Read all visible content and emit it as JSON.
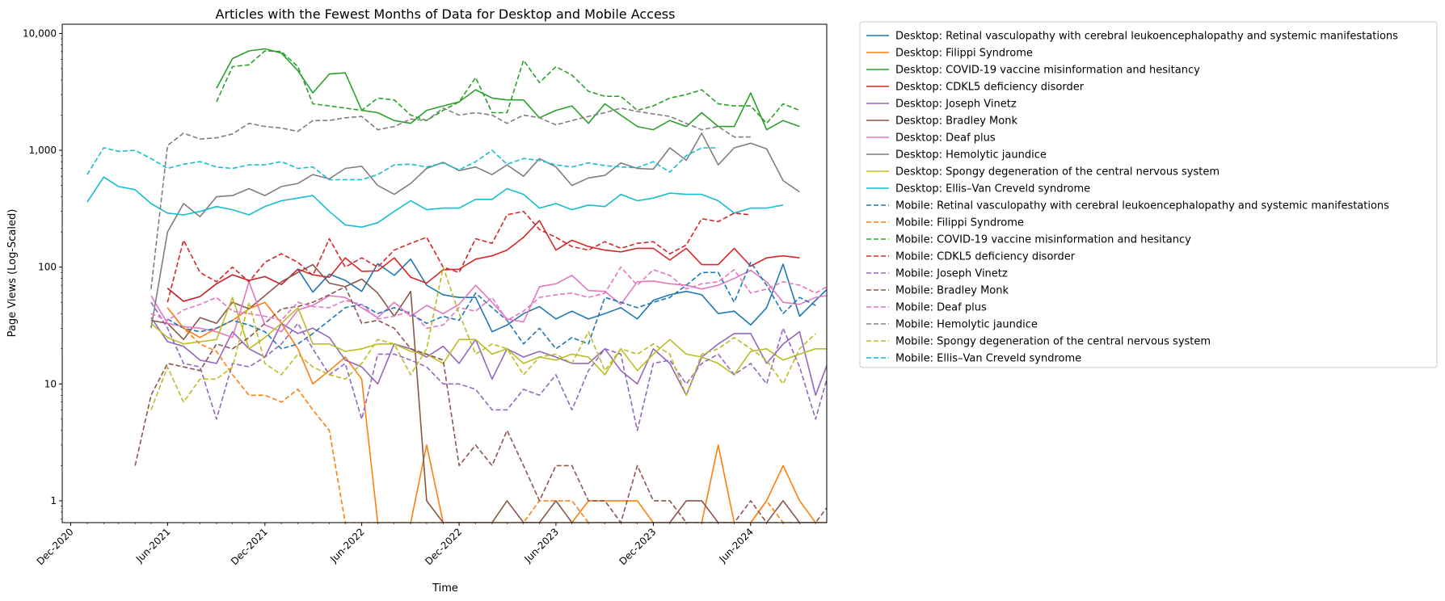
{
  "chart_data": {
    "type": "line",
    "title": "Articles with the Fewest Months of Data for Desktop and Mobile Access",
    "xlabel": "Time",
    "ylabel": "Page Views (Log-Scaled)",
    "y_scale": "log",
    "ylim": [
      0.65,
      12000
    ],
    "xlim": [
      "2020-11-15",
      "2024-10-22"
    ],
    "x_ticks": [
      {
        "date": "2020-12-01",
        "label": "Dec-2020"
      },
      {
        "date": "2021-06-01",
        "label": "Jun-2021"
      },
      {
        "date": "2021-12-01",
        "label": "Dec-2021"
      },
      {
        "date": "2022-06-01",
        "label": "Jun-2022"
      },
      {
        "date": "2022-12-01",
        "label": "Dec-2022"
      },
      {
        "date": "2023-06-01",
        "label": "Jun-2023"
      },
      {
        "date": "2023-12-01",
        "label": "Dec-2023"
      },
      {
        "date": "2024-06-01",
        "label": "Jun-2024"
      }
    ],
    "y_ticks": [
      {
        "value": 1,
        "label": "1"
      },
      {
        "value": 10,
        "label": "10"
      },
      {
        "value": 100,
        "label": "100"
      },
      {
        "value": 1000,
        "label": "1,000"
      },
      {
        "value": 10000,
        "label": "10,000"
      }
    ],
    "grid": false,
    "legend_position": "outside-right-top",
    "series": [
      {
        "name": "Desktop: Retinal vasculopathy with cerebral leukoencephalopathy and systemic manifestations",
        "color": "#1f77b4",
        "dash": "solid",
        "start": "2021-06-01",
        "values": [
          66,
          51,
          56,
          72,
          86,
          77,
          83,
          71,
          96,
          61,
          87,
          77,
          62,
          107,
          85,
          117,
          70,
          58,
          55,
          55,
          28,
          32,
          40,
          46,
          36,
          42,
          36,
          40,
          45,
          36,
          52,
          58,
          62,
          58,
          40,
          42,
          32,
          45,
          106,
          38,
          52,
          71,
          58,
          46
        ]
      },
      {
        "name": "Desktop: Filippi Syndrome",
        "color": "#ff7f0e",
        "dash": "solid",
        "start": "2021-06-01",
        "values": [
          45,
          30,
          25,
          30,
          35,
          44,
          50,
          33,
          20,
          10,
          13,
          17,
          11,
          0,
          0,
          0,
          3,
          0,
          0,
          0,
          0,
          0,
          0,
          0,
          0,
          0,
          1,
          1,
          1,
          1,
          0,
          0,
          0,
          0,
          3,
          0,
          0,
          1,
          2,
          1,
          0,
          0,
          0,
          0,
          1,
          0,
          0,
          0,
          6,
          2,
          1,
          0,
          0,
          1,
          1,
          1
        ]
      },
      {
        "name": "Desktop: COVID-19 vaccine misinformation and hesitancy",
        "color": "#2ca02c",
        "dash": "solid",
        "start": "2021-09-01",
        "values": [
          3400,
          6100,
          7100,
          7400,
          6800,
          4800,
          3100,
          4500,
          4600,
          2200,
          2100,
          1800,
          1700,
          2200,
          2400,
          2600,
          3300,
          2800,
          2700,
          2700,
          1900,
          2200,
          2400,
          1700,
          2500,
          2000,
          1600,
          1500,
          1800,
          1600,
          2100,
          1600,
          1600,
          3100,
          1500,
          1800,
          1600
        ]
      },
      {
        "name": "Desktop: CDKL5 deficiency disorder",
        "color": "#d62728",
        "dash": "solid",
        "start": "2021-06-01",
        "values": [
          66,
          51,
          56,
          72,
          86,
          77,
          83,
          71,
          96,
          86,
          82,
          120,
          92,
          93,
          120,
          82,
          73,
          95,
          96,
          117,
          125,
          140,
          180,
          250,
          140,
          170,
          150,
          140,
          135,
          145,
          145,
          115,
          145,
          105,
          105,
          145,
          102,
          120,
          125,
          120
        ]
      },
      {
        "name": "Desktop: Joseph Vinetz",
        "color": "#9467bd",
        "dash": "solid",
        "start": "2021-05-01",
        "values": [
          37,
          23,
          21,
          16,
          15,
          28,
          20,
          17,
          33,
          27,
          30,
          25,
          16,
          14,
          10,
          22,
          20,
          17,
          21,
          15,
          24,
          11,
          20,
          17,
          19,
          17,
          15,
          15,
          20,
          13,
          10,
          20,
          15,
          8,
          17,
          22,
          27,
          27,
          15,
          22,
          28,
          8,
          19,
          19,
          19
        ]
      },
      {
        "name": "Desktop: Bradley Monk",
        "color": "#8c564b",
        "dash": "solid",
        "start": "2021-05-01",
        "values": [
          35,
          33,
          24,
          37,
          33,
          50,
          44,
          57,
          75,
          90,
          105,
          73,
          68,
          79,
          60,
          38,
          62,
          1,
          0,
          0,
          0,
          0,
          1,
          0,
          0,
          1,
          0,
          0,
          0,
          0,
          0,
          0,
          0,
          1,
          1,
          0,
          0,
          0,
          0,
          1,
          0,
          0,
          0,
          0,
          2,
          0,
          0,
          2,
          1,
          0,
          0
        ]
      },
      {
        "name": "Desktop: Deaf plus",
        "color": "#e377c2",
        "dash": "solid",
        "start": "2021-05-01",
        "values": [
          57,
          33,
          31,
          30,
          28,
          25,
          75,
          32,
          28,
          43,
          47,
          57,
          55,
          45,
          37,
          50,
          38,
          47,
          40,
          48,
          70,
          50,
          36,
          34,
          68,
          72,
          85,
          63,
          62,
          48,
          75,
          76,
          72,
          70,
          65,
          70,
          80,
          94,
          75,
          50,
          48,
          55,
          58,
          65
        ]
      },
      {
        "name": "Desktop: Hemolytic jaundice",
        "color": "#7f7f7f",
        "dash": "solid",
        "start": "2021-05-01",
        "values": [
          30,
          200,
          350,
          270,
          400,
          410,
          470,
          410,
          490,
          520,
          620,
          570,
          700,
          730,
          500,
          420,
          520,
          700,
          790,
          670,
          720,
          620,
          750,
          600,
          850,
          720,
          500,
          580,
          610,
          780,
          700,
          690,
          1050,
          820,
          1400,
          750,
          1050,
          1150,
          1030,
          550,
          440
        ]
      },
      {
        "name": "Desktop: Spongy degeneration of the central nervous system",
        "color": "#bcbd22",
        "dash": "solid",
        "start": "2021-05-01",
        "values": [
          33,
          25,
          22,
          23,
          24,
          55,
          20,
          25,
          33,
          45,
          22,
          22,
          19,
          20,
          22,
          22,
          19,
          18,
          15,
          24,
          24,
          18,
          20,
          15,
          17,
          16,
          18,
          17,
          12,
          20,
          13,
          18,
          24,
          18,
          17,
          15,
          12,
          19,
          20,
          16,
          18,
          20,
          20,
          12
        ]
      },
      {
        "name": "Desktop: Ellis–Van Creveld syndrome",
        "color": "#17becf",
        "dash": "solid",
        "start": "2021-01-01",
        "values": [
          360,
          590,
          490,
          460,
          350,
          290,
          280,
          300,
          330,
          310,
          280,
          330,
          370,
          390,
          410,
          300,
          230,
          220,
          240,
          300,
          370,
          310,
          320,
          320,
          380,
          380,
          470,
          420,
          320,
          350,
          310,
          340,
          330,
          420,
          370,
          390,
          430,
          420,
          420,
          370,
          290,
          320,
          320,
          340
        ]
      },
      {
        "name": "Mobile: Retinal vasculopathy with cerebral leukoencephalopathy and systemic manifestations",
        "color": "#1f77b4",
        "dash": "dashed",
        "start": "2021-06-01",
        "values": [
          36,
          30,
          28,
          30,
          35,
          32,
          28,
          20,
          22,
          27,
          35,
          45,
          48,
          40,
          45,
          40,
          33,
          38,
          35,
          60,
          45,
          35,
          22,
          30,
          20,
          25,
          22,
          55,
          50,
          45,
          50,
          55,
          70,
          90,
          90,
          50,
          110,
          70,
          40,
          55,
          47
        ]
      },
      {
        "name": "Mobile: Filippi Syndrome",
        "color": "#ff7f0e",
        "dash": "dashed",
        "start": "2021-06-01",
        "values": [
          45,
          30,
          22,
          19,
          12,
          8,
          8,
          7,
          9,
          6,
          4,
          0,
          0,
          0,
          0,
          0,
          0,
          0,
          0,
          0,
          0,
          0,
          0,
          1,
          1,
          1,
          0,
          0,
          0,
          0,
          0,
          0,
          0,
          0,
          0,
          0,
          0,
          1,
          0,
          0,
          0,
          0,
          2,
          2,
          1,
          0,
          0,
          0,
          2,
          2,
          1,
          0,
          0,
          1,
          1,
          1
        ]
      },
      {
        "name": "Mobile: COVID-19 vaccine misinformation and hesitancy",
        "color": "#2ca02c",
        "dash": "dashed",
        "start": "2021-09-01",
        "values": [
          2600,
          5200,
          5400,
          7100,
          7000,
          5200,
          2500,
          2400,
          2300,
          2200,
          2800,
          2700,
          2000,
          1800,
          2200,
          2600,
          4200,
          2100,
          2100,
          5900,
          3800,
          5200,
          4400,
          3200,
          2900,
          2900,
          2200,
          2400,
          2800,
          3000,
          3300,
          2500,
          2400,
          2400,
          1700,
          2500,
          2200
        ]
      },
      {
        "name": "Mobile: CDKL5 deficiency disorder",
        "color": "#d62728",
        "dash": "dashed",
        "start": "2021-06-01",
        "values": [
          50,
          170,
          90,
          75,
          100,
          75,
          110,
          130,
          110,
          85,
          175,
          100,
          120,
          100,
          140,
          160,
          180,
          100,
          90,
          175,
          160,
          280,
          300,
          210,
          180,
          150,
          140,
          165,
          145,
          160,
          165,
          130,
          155,
          260,
          245,
          290,
          280
        ]
      },
      {
        "name": "Mobile: Joseph Vinetz",
        "color": "#9467bd",
        "dash": "dashed",
        "start": "2021-05-01",
        "values": [
          50,
          30,
          15,
          14,
          5,
          15,
          14,
          17,
          22,
          33,
          20,
          12,
          15,
          5,
          18,
          18,
          16,
          14,
          10,
          10,
          9,
          6,
          6,
          9,
          8,
          12,
          6,
          13,
          20,
          18,
          4,
          15,
          16,
          10,
          15,
          18,
          12,
          15,
          10,
          30,
          14,
          5,
          16,
          9
        ]
      },
      {
        "name": "Mobile: Bradley Monk",
        "color": "#8c564b",
        "dash": "dashed",
        "start": "2021-04-01",
        "values": [
          2,
          8,
          15,
          14,
          13,
          22,
          20,
          25,
          33,
          44,
          46,
          50,
          58,
          68,
          33,
          35,
          30,
          20,
          18,
          16,
          2,
          3,
          2,
          4,
          2,
          1,
          2,
          2,
          1,
          1,
          0,
          2,
          1,
          1,
          0,
          0,
          0,
          0,
          1,
          0,
          0,
          0,
          0,
          1,
          1,
          1,
          0,
          0,
          1,
          1,
          1,
          0
        ]
      },
      {
        "name": "Mobile: Deaf plus",
        "color": "#e377c2",
        "dash": "dashed",
        "start": "2021-05-01",
        "values": [
          40,
          35,
          43,
          48,
          55,
          42,
          40,
          38,
          35,
          50,
          46,
          45,
          52,
          48,
          36,
          38,
          42,
          30,
          32,
          45,
          42,
          55,
          35,
          42,
          55,
          58,
          60,
          55,
          60,
          100,
          70,
          95,
          85,
          65,
          72,
          75,
          95,
          60,
          65,
          75,
          70,
          60,
          72
        ]
      },
      {
        "name": "Mobile: Hemolytic jaundice",
        "color": "#7f7f7f",
        "dash": "dashed",
        "start": "2021-05-01",
        "values": [
          65,
          1100,
          1400,
          1250,
          1280,
          1380,
          1700,
          1600,
          1550,
          1450,
          1800,
          1800,
          1900,
          1950,
          1500,
          1600,
          1850,
          1800,
          2300,
          2000,
          2100,
          2000,
          1700,
          2000,
          1900,
          1650,
          1800,
          1950,
          2100,
          2300,
          2150,
          2050,
          1950,
          1700,
          1500,
          1600,
          1300,
          1300
        ]
      },
      {
        "name": "Mobile: Spongy degeneration of the central nervous system",
        "color": "#bcbd22",
        "dash": "dashed",
        "start": "2021-05-01",
        "values": [
          6,
          14,
          7,
          11,
          11,
          14,
          50,
          15,
          12,
          18,
          14,
          12,
          11,
          15,
          24,
          22,
          12,
          20,
          100,
          40,
          18,
          22,
          20,
          12,
          17,
          18,
          15,
          28,
          13,
          20,
          18,
          22,
          18,
          8,
          18,
          20,
          25,
          20,
          16,
          10,
          20,
          27
        ]
      },
      {
        "name": "Mobile: Ellis–Van Creveld syndrome",
        "color": "#17becf",
        "dash": "dashed",
        "start": "2021-01-01",
        "values": [
          620,
          1050,
          980,
          1000,
          850,
          700,
          760,
          800,
          720,
          700,
          750,
          750,
          800,
          700,
          720,
          560,
          560,
          560,
          620,
          750,
          760,
          720,
          780,
          680,
          800,
          1000,
          760,
          850,
          820,
          750,
          720,
          780,
          740,
          720,
          710,
          800,
          650,
          900,
          1050,
          1050
        ]
      }
    ]
  }
}
